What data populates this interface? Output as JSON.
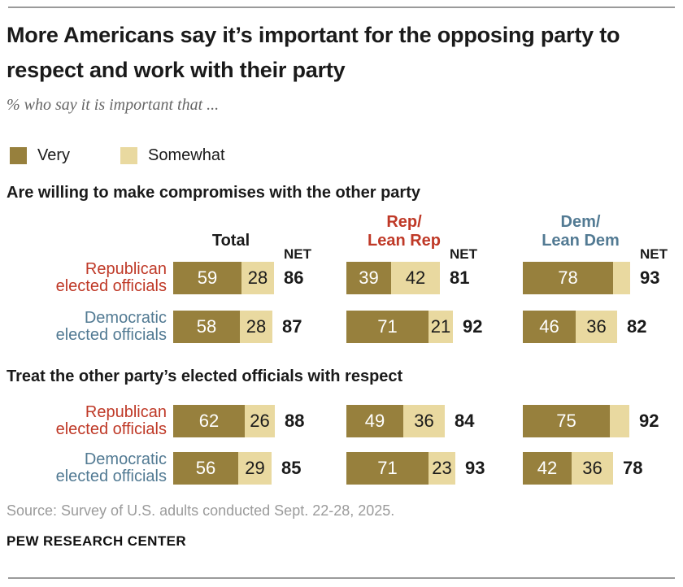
{
  "header": {
    "title": "More Americans say it’s important for the opposing party to respect and work with their party",
    "subtitle": "% who say it is important that ..."
  },
  "legend": [
    {
      "label": "Very",
      "color": "#97803D"
    },
    {
      "label": "Somewhat",
      "color": "#E9D9A0"
    }
  ],
  "colors": {
    "very": "#97803D",
    "somewhat": "#E9D9A0",
    "very_value_text": "#FFFFFF",
    "somewhat_value_text": "#1A1A1A",
    "republican_red": "#BF3927",
    "democrat_blue": "#527A93",
    "heading_text": "#1A1A1A",
    "source_gray": "#9B9B9B"
  },
  "chart_data": {
    "type": "bar",
    "orientation": "horizontal",
    "stacked": true,
    "value_unit": "percent",
    "axis_range": [
      0,
      100
    ],
    "grid": false,
    "series_labels": [
      "Very",
      "Somewhat"
    ],
    "net_label": "NET",
    "columns": [
      {
        "label": "Total",
        "label_lines": [
          "Total"
        ],
        "color": "#1A1A1A"
      },
      {
        "label": "Rep/Lean Rep",
        "label_lines": [
          "Rep/",
          "Lean Rep"
        ],
        "color": "#BF3927"
      },
      {
        "label": "Dem/Lean Dem",
        "label_lines": [
          "Dem/",
          "Lean Dem"
        ],
        "color": "#527A93"
      }
    ],
    "sections": [
      {
        "heading": "Are willing to make compromises with the other party",
        "show_column_headers": true,
        "show_net_label": true,
        "rows": [
          {
            "label": "Republican elected officials",
            "label_lines": [
              "Republican",
              "elected officials"
            ],
            "label_color": "#BF3927",
            "cells": [
              {
                "very": 59,
                "somewhat": 28,
                "net": 86,
                "show_somewhat": true
              },
              {
                "very": 39,
                "somewhat": 42,
                "net": 81,
                "show_somewhat": true
              },
              {
                "very": 78,
                "somewhat": 15,
                "net": 93,
                "show_somewhat": false
              }
            ]
          },
          {
            "label": "Democratic elected officials",
            "label_lines": [
              "Democratic",
              "elected officials"
            ],
            "label_color": "#527A93",
            "cells": [
              {
                "very": 58,
                "somewhat": 28,
                "net": 87,
                "show_somewhat": true
              },
              {
                "very": 71,
                "somewhat": 21,
                "net": 92,
                "show_somewhat": true
              },
              {
                "very": 46,
                "somewhat": 36,
                "net": 82,
                "show_somewhat": true
              }
            ]
          }
        ]
      },
      {
        "heading": "Treat the other party’s elected officials with respect",
        "show_column_headers": false,
        "show_net_label": false,
        "rows": [
          {
            "label": "Republican elected officials",
            "label_lines": [
              "Republican",
              "elected officials"
            ],
            "label_color": "#BF3927",
            "cells": [
              {
                "very": 62,
                "somewhat": 26,
                "net": 88,
                "show_somewhat": true
              },
              {
                "very": 49,
                "somewhat": 36,
                "net": 84,
                "show_somewhat": true
              },
              {
                "very": 75,
                "somewhat": 17,
                "net": 92,
                "show_somewhat": false
              }
            ]
          },
          {
            "label": "Democratic elected officials",
            "label_lines": [
              "Democratic",
              "elected officials"
            ],
            "label_color": "#527A93",
            "cells": [
              {
                "very": 56,
                "somewhat": 29,
                "net": 85,
                "show_somewhat": true
              },
              {
                "very": 71,
                "somewhat": 23,
                "net": 93,
                "show_somewhat": true
              },
              {
                "very": 42,
                "somewhat": 36,
                "net": 78,
                "show_somewhat": true
              }
            ]
          }
        ]
      }
    ]
  },
  "footer": {
    "source": "Source: Survey of U.S. adults conducted Sept. 22-28, 2025.",
    "brand": "PEW RESEARCH CENTER"
  }
}
